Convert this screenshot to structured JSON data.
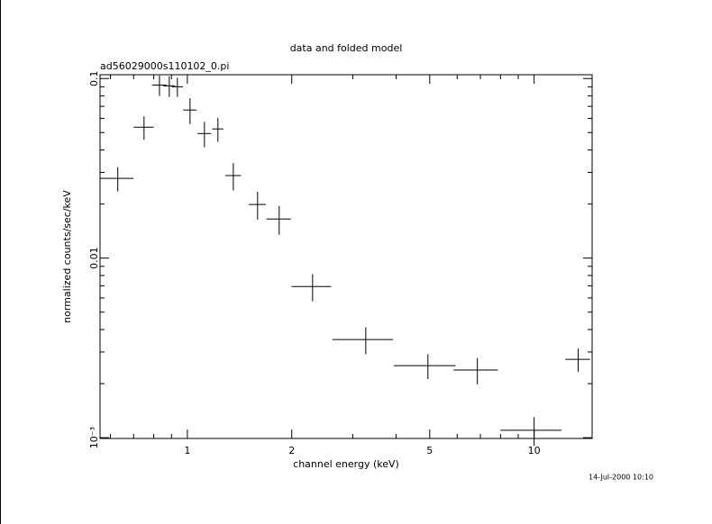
{
  "chart_data": {
    "type": "scatter",
    "title": "data and folded model",
    "subtitle": "ad56029000s110102_0.pi",
    "x_label": "channel energy (keV)",
    "y_label": "normalized counts/sec/keV",
    "timestamp": "14-Jul-2000 10:10",
    "log_x": true,
    "log_y": true,
    "color": "#000000",
    "xlim": [
      0.56,
      14.7
    ],
    "ylim": [
      0.00099,
      0.105
    ],
    "xticks": [
      1,
      2,
      5,
      10
    ],
    "yticks": [
      0.1,
      0.01,
      {
        "value": 0.001,
        "label": "10⁻³"
      }
    ],
    "xminorticks": [
      0.6,
      0.7,
      0.8,
      0.9,
      3,
      4,
      6,
      7,
      8,
      9
    ],
    "yminorticks": [
      0.002,
      0.003,
      0.004,
      0.005,
      0.006,
      0.007,
      0.008,
      0.009,
      0.02,
      0.03,
      0.04,
      0.05,
      0.06,
      0.07,
      0.08,
      0.09
    ],
    "series": [
      {
        "x": [
          0.63,
          0.75,
          0.831,
          0.887,
          0.936,
          1.018,
          1.12,
          1.225,
          1.357,
          1.594,
          1.84,
          2.297,
          3.27,
          4.94,
          6.86,
          10.0,
          13.4
        ],
        "xerr": [
          0.07,
          0.05,
          0.04,
          0.035,
          0.035,
          0.045,
          0.05,
          0.045,
          0.07,
          0.09,
          0.15,
          0.3,
          0.65,
          1.0,
          1.0,
          2.0,
          1.1
        ],
        "values": [
          0.0278,
          0.0536,
          0.092,
          0.091,
          0.09,
          0.0668,
          0.0494,
          0.0524,
          0.0288,
          0.0199,
          0.0165,
          0.00695,
          0.00352,
          0.00252,
          0.00238,
          0.0011,
          0.00273
        ],
        "yerr": [
          0.0043,
          0.008,
          0.012,
          0.012,
          0.011,
          0.011,
          0.008,
          0.008,
          0.005,
          0.0035,
          0.003,
          0.0012,
          0.0006,
          0.0004,
          0.0004,
          0.0002,
          0.0004
        ]
      }
    ]
  }
}
